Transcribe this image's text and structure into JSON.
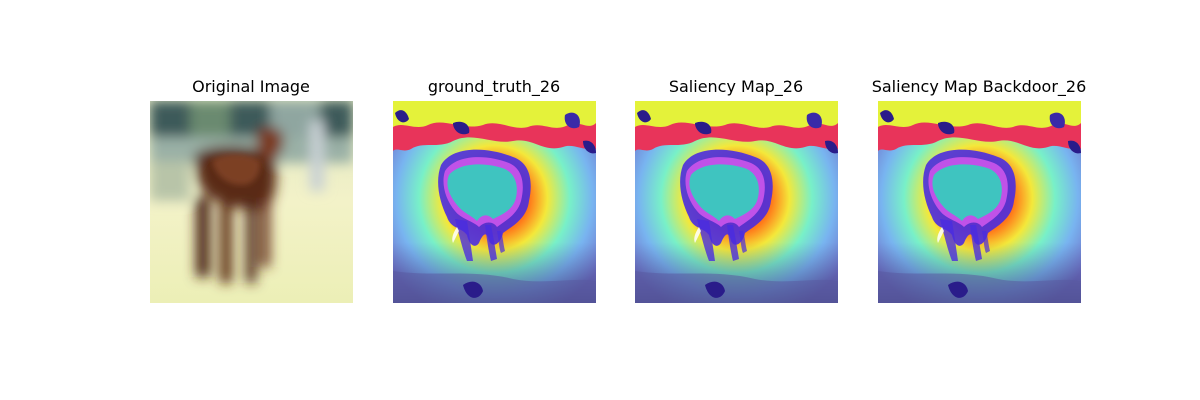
{
  "panels": [
    {
      "title": "Original Image"
    },
    {
      "title": "ground_truth_26"
    },
    {
      "title": "Saliency Map_26"
    },
    {
      "title": "Saliency Map Backdoor_26"
    }
  ]
}
